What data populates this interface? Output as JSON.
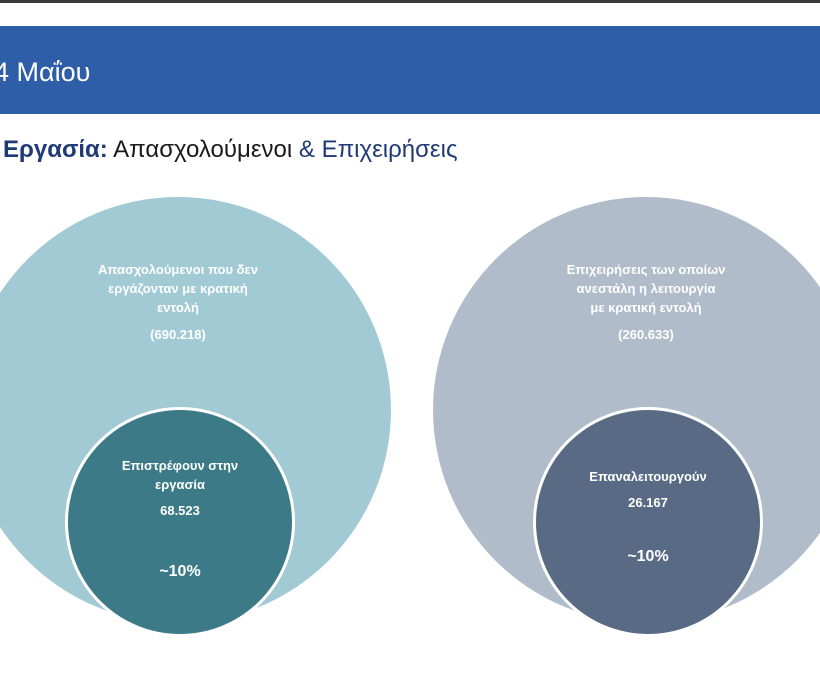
{
  "header": {
    "title": "4 Μαΐου"
  },
  "subtitle": {
    "part1": "Εργασία:",
    "part2": " Απασχολούμενοι ",
    "part3": "&",
    "part4": " Επιχειρήσεις"
  },
  "left": {
    "outer_line1": "Απασχολούμενοι που δεν",
    "outer_line2": "εργάζονταν με κρατική",
    "outer_line3": "εντολή",
    "outer_value": "(690.218)",
    "inner_line1": "Επιστρέφουν στην",
    "inner_line2": "εργασία",
    "inner_value": "68.523",
    "inner_pct": "~10%"
  },
  "right": {
    "outer_line1": "Επιχειρήσεις των οποίων",
    "outer_line2": "ανεστάλη η λειτουργία",
    "outer_line3": "με κρατική εντολή",
    "outer_value": "(260.633)",
    "inner_line1": "Επαναλειτουργούν",
    "inner_value": "26.167",
    "inner_pct": "~10%"
  },
  "colors": {
    "header": "#2f5ea8",
    "left_outer": "#a2cad4",
    "left_inner": "#3b7a86",
    "right_outer": "#b1bccb",
    "right_inner": "#596a85"
  }
}
